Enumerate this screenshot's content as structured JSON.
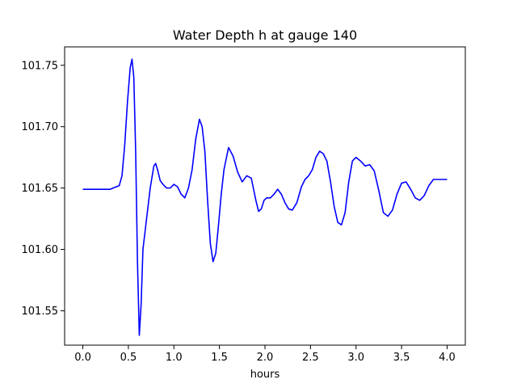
{
  "chart_data": {
    "type": "line",
    "title": "Water Depth h at gauge 140",
    "xlabel": "hours",
    "ylabel": "",
    "xlim": [
      -0.2,
      4.2
    ],
    "ylim": [
      101.522,
      101.765
    ],
    "xticks": [
      0.0,
      0.5,
      1.0,
      1.5,
      2.0,
      2.5,
      3.0,
      3.5,
      4.0
    ],
    "xtick_labels": [
      "0.0",
      "0.5",
      "1.0",
      "1.5",
      "2.0",
      "2.5",
      "3.0",
      "3.5",
      "4.0"
    ],
    "yticks": [
      101.55,
      101.6,
      101.65,
      101.7,
      101.75
    ],
    "ytick_labels": [
      "101.55",
      "101.60",
      "101.65",
      "101.70",
      "101.75"
    ],
    "grid": false,
    "series": [
      {
        "color": "#0000ff",
        "x": [
          0.0,
          0.1,
          0.2,
          0.3,
          0.4,
          0.43,
          0.46,
          0.49,
          0.52,
          0.54,
          0.56,
          0.58,
          0.6,
          0.62,
          0.64,
          0.66,
          0.7,
          0.74,
          0.78,
          0.8,
          0.82,
          0.85,
          0.88,
          0.92,
          0.96,
          1.0,
          1.04,
          1.08,
          1.12,
          1.16,
          1.2,
          1.24,
          1.28,
          1.31,
          1.34,
          1.37,
          1.4,
          1.43,
          1.46,
          1.49,
          1.52,
          1.55,
          1.6,
          1.65,
          1.7,
          1.75,
          1.8,
          1.85,
          1.9,
          1.93,
          1.96,
          1.99,
          2.02,
          2.06,
          2.1,
          2.14,
          2.18,
          2.22,
          2.26,
          2.3,
          2.35,
          2.4,
          2.44,
          2.48,
          2.52,
          2.56,
          2.6,
          2.64,
          2.68,
          2.72,
          2.76,
          2.8,
          2.84,
          2.88,
          2.92,
          2.96,
          3.0,
          3.05,
          3.1,
          3.15,
          3.2,
          3.25,
          3.3,
          3.35,
          3.4,
          3.45,
          3.5,
          3.55,
          3.6,
          3.65,
          3.7,
          3.75,
          3.8,
          3.85,
          3.9,
          3.95,
          4.0
        ],
        "y": [
          101.649,
          101.649,
          101.649,
          101.649,
          101.652,
          101.66,
          101.685,
          101.72,
          101.748,
          101.755,
          101.74,
          101.68,
          101.59,
          101.53,
          101.555,
          101.6,
          101.625,
          101.65,
          101.668,
          101.67,
          101.665,
          101.656,
          101.653,
          101.65,
          101.65,
          101.653,
          101.651,
          101.645,
          101.642,
          101.65,
          101.665,
          101.69,
          101.706,
          101.7,
          101.68,
          101.64,
          101.605,
          101.59,
          101.597,
          101.62,
          101.645,
          101.665,
          101.683,
          101.676,
          101.663,
          101.655,
          101.66,
          101.658,
          101.64,
          101.631,
          101.633,
          101.64,
          101.642,
          101.642,
          101.645,
          101.649,
          101.645,
          101.638,
          101.633,
          101.632,
          101.638,
          101.651,
          101.657,
          101.66,
          101.665,
          101.675,
          101.68,
          101.678,
          101.672,
          101.655,
          101.635,
          101.622,
          101.62,
          101.63,
          101.655,
          101.672,
          101.675,
          101.672,
          101.668,
          101.669,
          101.664,
          101.648,
          101.63,
          101.627,
          101.632,
          101.645,
          101.654,
          101.655,
          101.649,
          101.642,
          101.64,
          101.644,
          101.652,
          101.657,
          101.657,
          101.657,
          101.657
        ]
      }
    ]
  }
}
